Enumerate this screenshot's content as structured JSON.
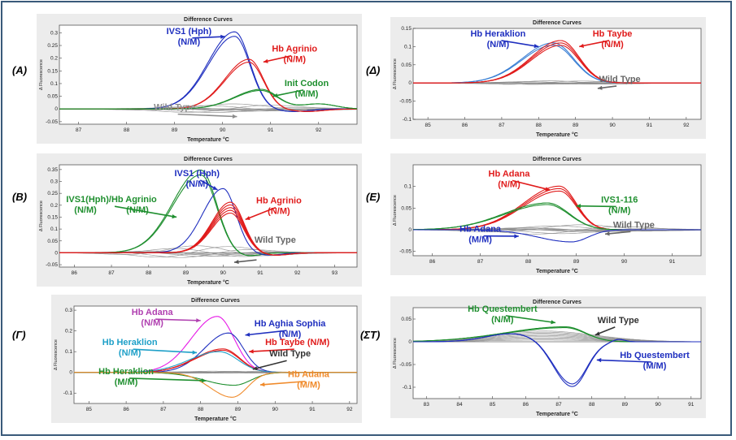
{
  "panels": [
    {
      "id": "A",
      "label": "(A)",
      "title": "Difference Curves",
      "ylabel": "Δ Fluorescence",
      "xlabel": "Temperature °C",
      "xlim": [
        86.6,
        92.8
      ],
      "ylim": [
        -0.06,
        0.33
      ],
      "xticks": [
        87,
        88,
        89,
        90,
        91,
        92
      ],
      "yticks": [
        -0.05,
        0,
        0.05,
        0.1,
        0.15,
        0.2,
        0.25,
        0.3
      ],
      "ytick_labels": [
        "-0.05",
        "0",
        "0.05",
        "0.1",
        "0.15",
        "0.2",
        "0.25",
        "0.3"
      ],
      "series": [
        {
          "name": "Wild Type",
          "color": "#8c8c8c",
          "kind": "wt",
          "center": 90.2,
          "amp": 0.02,
          "width": 1.2
        },
        {
          "name": "IVS1 (Hph)",
          "color": "#1f2fbf",
          "kind": "peak",
          "center": 90.25,
          "amp": 0.295,
          "left_width": 0.55,
          "right_width": 0.32,
          "dip_amp": -0.01,
          "copies": 2
        },
        {
          "name": "Hb Agrinio",
          "color": "#e01b1b",
          "kind": "peak",
          "center": 90.55,
          "amp": 0.19,
          "left_width": 0.5,
          "right_width": 0.3,
          "dip_amp": -0.01,
          "copies": 2
        },
        {
          "name": "Init Codon",
          "color": "#1f8f2f",
          "kind": "peak",
          "center": 90.8,
          "amp": 0.075,
          "left_width": 0.55,
          "right_width": 0.35,
          "dip_amp": 0.02,
          "copies": 2
        }
      ],
      "annotations": [
        {
          "lines": [
            "IVS1 (Hph)",
            "(N/M)"
          ],
          "color": "#1f2fbf",
          "x": 89.3,
          "y": 0.27,
          "arrow_to": [
            90.05,
            0.285
          ]
        },
        {
          "lines": [
            "Hb Agrinio",
            "(N/M)"
          ],
          "color": "#e01b1b",
          "x": 91.5,
          "y": 0.2,
          "arrow_to": [
            90.85,
            0.185
          ]
        },
        {
          "lines": [
            "Init Codon",
            "(M/M)"
          ],
          "color": "#1f8f2f",
          "x": 91.75,
          "y": 0.065,
          "arrow_to": [
            91.05,
            0.05
          ]
        },
        {
          "lines": [
            "Wild Type"
          ],
          "color": "#8c8c8c",
          "x": 89.0,
          "y": -0.03,
          "arrow_to": [
            90.3,
            -0.03
          ]
        }
      ]
    },
    {
      "id": "Delta",
      "label": "(Δ)",
      "title": "Difference Curves",
      "ylabel": "Δ Fluorescence",
      "xlabel": "Temperature °C",
      "xlim": [
        84.6,
        92.4
      ],
      "ylim": [
        -0.1,
        0.15
      ],
      "xticks": [
        85,
        86,
        87,
        88,
        89,
        90,
        91,
        92
      ],
      "yticks": [
        -0.1,
        -0.05,
        0,
        0.05,
        0.1,
        0.15
      ],
      "ytick_labels": [
        "-0.1",
        "-0.05",
        "0",
        "0.05",
        "0.1",
        "0.15"
      ],
      "series": [
        {
          "name": "Wild Type",
          "color": "#8c8c8c",
          "kind": "wt",
          "center": 88.5,
          "amp": 0.006,
          "width": 1.5
        },
        {
          "name": "Hb Heraklion",
          "color": "#3a7fd4",
          "kind": "peak",
          "center": 88.4,
          "amp": 0.107,
          "left_width": 0.85,
          "right_width": 0.55,
          "dip_amp": 0,
          "copies": 2
        },
        {
          "name": "Hb Taybe",
          "color": "#e01b1b",
          "kind": "peak",
          "center": 88.6,
          "amp": 0.11,
          "left_width": 0.8,
          "right_width": 0.5,
          "dip_amp": 0,
          "copies": 3
        }
      ],
      "annotations": [
        {
          "lines": [
            "Hb Heraklion",
            "(N/M)"
          ],
          "color": "#1f2fbf",
          "x": 86.9,
          "y": 0.11,
          "arrow_to": [
            88.0,
            0.1
          ]
        },
        {
          "lines": [
            "Hb Taybe",
            "(N/M)"
          ],
          "color": "#e01b1b",
          "x": 90.0,
          "y": 0.11,
          "arrow_to": [
            89.1,
            0.1
          ]
        },
        {
          "lines": [
            "Wild Type"
          ],
          "color": "#666666",
          "x": 90.2,
          "y": -0.015,
          "arrow_to": [
            89.6,
            -0.015
          ]
        }
      ]
    },
    {
      "id": "B",
      "label": "(B)",
      "title": "Difference Curves",
      "ylabel": "Δ Fluorescence",
      "xlabel": "Temperature °C",
      "xlim": [
        85.6,
        93.6
      ],
      "ylim": [
        -0.06,
        0.37
      ],
      "xticks": [
        86,
        87,
        88,
        89,
        90,
        91,
        92,
        93
      ],
      "yticks": [
        -0.05,
        0,
        0.05,
        0.1,
        0.15,
        0.2,
        0.25,
        0.3,
        0.35
      ],
      "ytick_labels": [
        "-0.05",
        "0",
        "0.05",
        "0.1",
        "0.15",
        "0.2",
        "0.25",
        "0.3",
        "0.35"
      ],
      "series": [
        {
          "name": "Wild Type",
          "color": "#8c8c8c",
          "kind": "wt",
          "center": 89.5,
          "amp": 0.03,
          "width": 1.4
        },
        {
          "name": "IVS1(Hph)/Hb Agrinio",
          "color": "#1f8f2f",
          "kind": "peak",
          "center": 89.4,
          "amp": 0.338,
          "left_width": 0.75,
          "right_width": 0.42,
          "dip_amp": -0.015,
          "copies": 2
        },
        {
          "name": "IVS1 (Hph)",
          "color": "#1f2fbf",
          "kind": "peak",
          "center": 90.0,
          "amp": 0.27,
          "left_width": 0.55,
          "right_width": 0.35,
          "dip_amp": -0.01,
          "copies": 1
        },
        {
          "name": "Hb Agrinio",
          "color": "#e01b1b",
          "kind": "peak",
          "center": 90.2,
          "amp": 0.19,
          "left_width": 0.5,
          "right_width": 0.35,
          "dip_amp": -0.01,
          "copies": 5
        }
      ],
      "annotations": [
        {
          "lines": [
            "IVS1 (Hph)",
            "(N/M)"
          ],
          "color": "#1f2fbf",
          "x": 89.3,
          "y": 0.295,
          "arrow_to": [
            89.85,
            0.265
          ]
        },
        {
          "lines": [
            "IVS1(Hph)/Hb Agrinio",
            "(N/M)",
            "(N/M)"
          ],
          "color": "#1f8f2f",
          "x": 87.0,
          "y": 0.185,
          "arrow_to": [
            88.75,
            0.15
          ],
          "layout": "split"
        },
        {
          "lines": [
            "Hb Agrinio",
            "(N/M)"
          ],
          "color": "#e01b1b",
          "x": 91.5,
          "y": 0.18,
          "arrow_to": [
            90.6,
            0.14
          ]
        },
        {
          "lines": [
            "Wild Type"
          ],
          "color": "#666666",
          "x": 91.4,
          "y": 0.015,
          "arrow_to": null
        },
        {
          "lines": [
            ""
          ],
          "color": "#555555",
          "x": 90.9,
          "y": -0.04,
          "arrow_to": [
            90.3,
            -0.04
          ]
        }
      ]
    },
    {
      "id": "E",
      "label": "(E)",
      "title": "Difference Curves",
      "ylabel": "Δ Fluorescence",
      "xlabel": "Temperature °C",
      "xlim": [
        85.6,
        91.6
      ],
      "ylim": [
        -0.06,
        0.15
      ],
      "xticks": [
        86,
        87,
        88,
        89,
        90,
        91
      ],
      "yticks": [
        -0.05,
        0,
        0.05,
        0.1
      ],
      "ytick_labels": [
        "-0.05",
        "0",
        "0.05",
        "0.1"
      ],
      "series": [
        {
          "name": "Wild Type",
          "color": "#8c8c8c",
          "kind": "wt",
          "center": 88.8,
          "amp": 0.012,
          "width": 1.3
        },
        {
          "name": "Hb Adana (N/M)",
          "color": "#e01b1b",
          "kind": "peak",
          "center": 88.65,
          "amp": 0.095,
          "left_width": 0.75,
          "right_width": 0.35,
          "dip_amp": 0,
          "copies": 3
        },
        {
          "name": "IVS1-116",
          "color": "#1f8f2f",
          "kind": "peak",
          "center": 88.4,
          "amp": 0.06,
          "left_width": 0.9,
          "right_width": 0.45,
          "dip_amp": 0,
          "copies": 2
        },
        {
          "name": "Hb Adana (M/M)",
          "color": "#1f2fbf",
          "kind": "peak",
          "center": 88.9,
          "amp": -0.028,
          "left_width": 0.7,
          "right_width": 0.35,
          "dip_amp": 0,
          "copies": 1
        }
      ],
      "annotations": [
        {
          "lines": [
            "Hb Adana",
            "(N/M)"
          ],
          "color": "#e01b1b",
          "x": 87.6,
          "y": 0.108,
          "arrow_to": [
            88.45,
            0.092
          ]
        },
        {
          "lines": [
            "IVS1-116",
            "(N/M)"
          ],
          "color": "#1f8f2f",
          "x": 89.9,
          "y": 0.048,
          "arrow_to": [
            89.0,
            0.055
          ]
        },
        {
          "lines": [
            "Hb Adana",
            "(M/M)"
          ],
          "color": "#1f2fbf",
          "x": 87.0,
          "y": -0.02,
          "arrow_to": [
            87.8,
            -0.015
          ]
        },
        {
          "lines": [
            "Wild Type"
          ],
          "color": "#666666",
          "x": 90.2,
          "y": -0.01,
          "arrow_to": [
            89.6,
            -0.01
          ]
        }
      ]
    },
    {
      "id": "Gamma",
      "label": "(Γ)",
      "title": "Difference Curves",
      "ylabel": "Δ Fluorescence",
      "xlabel": "Temperature °C",
      "xlim": [
        84.6,
        92.2
      ],
      "ylim": [
        -0.15,
        0.32
      ],
      "xticks": [
        85,
        86,
        87,
        88,
        89,
        90,
        91,
        92
      ],
      "yticks": [
        -0.1,
        0,
        0.1,
        0.2,
        0.3
      ],
      "ytick_labels": [
        "-0.1",
        "0",
        "0.1",
        "0.2",
        "0.3"
      ],
      "series": [
        {
          "name": "Wild Type",
          "color": "#8c8c8c",
          "kind": "wt",
          "center": 88.6,
          "amp": 0.006,
          "width": 1.3
        },
        {
          "name": "Hb Adana (N/M)",
          "color": "#e619e6",
          "kind": "peak",
          "center": 88.45,
          "amp": 0.27,
          "left_width": 0.7,
          "right_width": 0.45,
          "dip_amp": 0,
          "copies": 1
        },
        {
          "name": "Hb Aghia Sophia",
          "color": "#1f2fbf",
          "kind": "peak",
          "center": 88.75,
          "amp": 0.19,
          "left_width": 0.65,
          "right_width": 0.4,
          "dip_amp": 0,
          "copies": 1
        },
        {
          "name": "Hb Taybe",
          "color": "#e01b1b",
          "kind": "peak",
          "center": 88.6,
          "amp": 0.11,
          "left_width": 0.75,
          "right_width": 0.45,
          "dip_amp": 0,
          "copies": 2
        },
        {
          "name": "Hb Heraklion (N/M)",
          "color": "#1fa0c8",
          "kind": "peak",
          "center": 88.5,
          "amp": 0.1,
          "left_width": 0.8,
          "right_width": 0.5,
          "dip_amp": 0,
          "copies": 1
        },
        {
          "name": "Hb Heraklion (M/M)",
          "color": "#1f8f2f",
          "kind": "peak",
          "center": 88.9,
          "amp": -0.062,
          "left_width": 0.8,
          "right_width": 0.45,
          "dip_amp": 0,
          "copies": 1
        },
        {
          "name": "Hb Adana (M/M)",
          "color": "#f08a2a",
          "kind": "peak",
          "center": 88.85,
          "amp": -0.12,
          "left_width": 0.6,
          "right_width": 0.4,
          "dip_amp": 0,
          "copies": 1
        }
      ],
      "annotations": [
        {
          "lines": [
            "Hb Adana",
            "(N/M)"
          ],
          "color": "#b040b0",
          "x": 86.7,
          "y": 0.245,
          "arrow_to": [
            88.0,
            0.25
          ]
        },
        {
          "lines": [
            "Hb Aghia Sophia",
            "(N/M)"
          ],
          "color": "#1f2fbf",
          "x": 90.4,
          "y": 0.19,
          "arrow_to": [
            89.2,
            0.18
          ]
        },
        {
          "lines": [
            "Hb Heraklion",
            "(N/M)"
          ],
          "color": "#1fa0c8",
          "x": 86.1,
          "y": 0.1,
          "arrow_to": [
            87.9,
            0.095
          ]
        },
        {
          "lines": [
            "Hb Taybe (N/M)"
          ],
          "color": "#e01b1b",
          "x": 90.6,
          "y": 0.1,
          "arrow_to": [
            89.3,
            0.1
          ]
        },
        {
          "lines": [
            "Wild Type"
          ],
          "color": "#333333",
          "x": 90.4,
          "y": 0.045,
          "arrow_to": [
            89.4,
            0.015
          ]
        },
        {
          "lines": [
            "Hb Heraklion",
            "(M/M)"
          ],
          "color": "#1f8f2f",
          "x": 86.0,
          "y": -0.04,
          "arrow_to": [
            88.15,
            -0.04
          ]
        },
        {
          "lines": [
            "Hb Adana",
            "(M/M)"
          ],
          "color": "#f08a2a",
          "x": 90.9,
          "y": -0.055,
          "arrow_to": [
            89.6,
            -0.06
          ]
        }
      ]
    },
    {
      "id": "ST",
      "label": "(ΣΤ)",
      "title": "Difference Curves",
      "ylabel": "Δ Fluorescence",
      "xlabel": "Temperature °C",
      "xlim": [
        82.6,
        91.3
      ],
      "ylim": [
        -0.125,
        0.075
      ],
      "xticks": [
        83,
        84,
        85,
        86,
        87,
        88,
        89,
        90,
        91
      ],
      "yticks": [
        -0.1,
        -0.05,
        0,
        0.05
      ],
      "ytick_labels": [
        "-0.1",
        "-0.05",
        "0",
        "0.05"
      ],
      "series": [
        {
          "name": "Wild Type",
          "color": "#8c8c8c",
          "kind": "wtbroad",
          "center": 86.5,
          "amp": 0.025,
          "width": 1.6
        },
        {
          "name": "Hb Questembert (N/M)",
          "color": "#1f8f2f",
          "kind": "peak",
          "center": 87.2,
          "amp": 0.032,
          "left_width": 1.8,
          "right_width": 0.6,
          "dip_amp": 0,
          "copies": 2
        },
        {
          "name": "Hb Questembert (M/M)",
          "color": "#1f2fbf",
          "kind": "quest",
          "center": 87.4,
          "amp": -0.097,
          "left_width": 0.55,
          "right_width": 0.45,
          "dip_amp": 0,
          "copies": 2
        }
      ],
      "annotations": [
        {
          "lines": [
            "Hb Questembert",
            "(N/M)"
          ],
          "color": "#1f8f2f",
          "x": 85.3,
          "y": 0.052,
          "arrow_to": [
            86.9,
            0.042
          ]
        },
        {
          "lines": [
            "Wild Type"
          ],
          "color": "#333333",
          "x": 88.8,
          "y": 0.027,
          "arrow_to": [
            88.1,
            0.015
          ]
        },
        {
          "lines": [
            "Hb Questembert",
            "(M/M)"
          ],
          "color": "#1f2fbf",
          "x": 89.9,
          "y": -0.05,
          "arrow_to": [
            88.15,
            -0.04
          ]
        }
      ]
    }
  ]
}
